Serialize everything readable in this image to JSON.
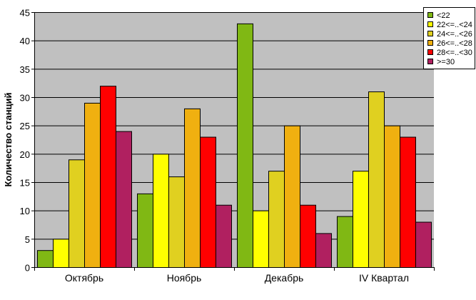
{
  "chart_data": {
    "type": "bar",
    "title": "",
    "xlabel": "",
    "ylabel": "Количество станций",
    "ylim": [
      0,
      45
    ],
    "yticks": [
      0,
      5,
      10,
      15,
      20,
      25,
      30,
      35,
      40,
      45
    ],
    "grid": true,
    "legend_position": "top-right",
    "plot_background": "#c0c0c0",
    "categories": [
      "Октябрь",
      "Ноябрь",
      "Декабрь",
      "IV Квартал"
    ],
    "series": [
      {
        "name": "<22",
        "color": "#80b814",
        "values": [
          3,
          13,
          43,
          9
        ]
      },
      {
        "name": "22<=..<24",
        "color": "#ffff00",
        "values": [
          5,
          20,
          10,
          17
        ]
      },
      {
        "name": "24<=..<26",
        "color": "#e0d020",
        "values": [
          19,
          16,
          17,
          31
        ]
      },
      {
        "name": "26<=..<28",
        "color": "#f0b010",
        "values": [
          29,
          28,
          25,
          25
        ]
      },
      {
        "name": "28<=..<30",
        "color": "#ff0000",
        "values": [
          32,
          23,
          11,
          23
        ]
      },
      {
        "name": ">=30",
        "color": "#b02060",
        "values": [
          24,
          11,
          6,
          8
        ]
      }
    ]
  }
}
